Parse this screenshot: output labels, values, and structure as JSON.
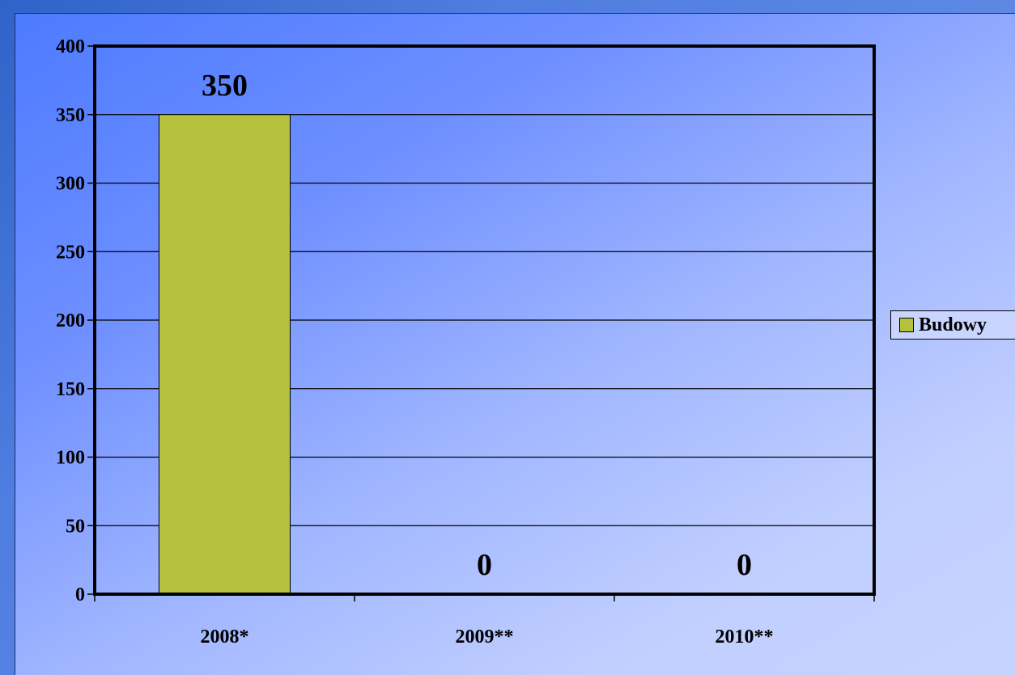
{
  "chart_data": {
    "type": "bar",
    "categories": [
      "2008*",
      "2009**",
      "2010**"
    ],
    "series": [
      {
        "name": "Budowy",
        "values": [
          350,
          0,
          0
        ],
        "color": "#b5c13c"
      }
    ],
    "data_labels": [
      "350",
      "0",
      "0"
    ],
    "title": "",
    "xlabel": "",
    "ylabel": "",
    "ylim": [
      0,
      400
    ],
    "yticks": [
      0,
      50,
      100,
      150,
      200,
      250,
      300,
      350,
      400
    ],
    "grid": true,
    "legend": "right"
  }
}
